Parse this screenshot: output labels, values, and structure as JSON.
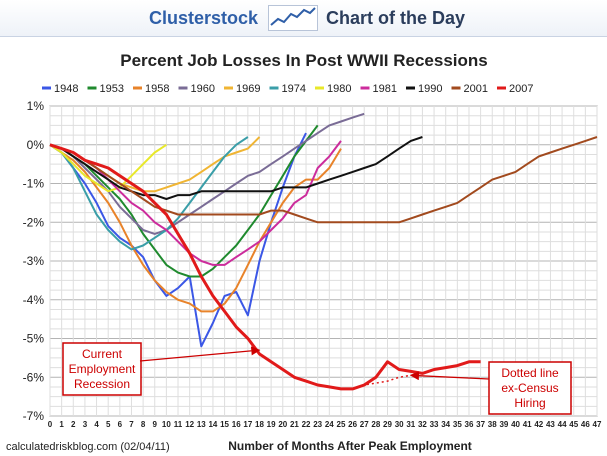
{
  "header": {
    "brand": "Clusterstock",
    "tagline": "Chart of the Day",
    "logo_icon": "rising-chart-icon"
  },
  "chart_data": {
    "type": "line",
    "title": "Percent Job Losses In Post WWII Recessions",
    "xlabel": "Number of Months After Peak Employment",
    "ylabel": "",
    "source": "calculatedriskblog.com (02/04/11)",
    "xlim": [
      0,
      47
    ],
    "ylim": [
      -7,
      1
    ],
    "yticks": [
      1,
      0,
      -1,
      -2,
      -3,
      -4,
      -5,
      -6,
      -7
    ],
    "ytick_labels": [
      "1%",
      "0%",
      "-1%",
      "-2%",
      "-3%",
      "-4%",
      "-5%",
      "-6%",
      "-7%"
    ],
    "xticks": [
      0,
      1,
      2,
      3,
      4,
      5,
      6,
      7,
      8,
      9,
      10,
      11,
      12,
      13,
      14,
      15,
      16,
      17,
      18,
      19,
      20,
      21,
      22,
      23,
      24,
      25,
      26,
      27,
      28,
      29,
      30,
      31,
      32,
      33,
      34,
      35,
      36,
      37,
      38,
      39,
      40,
      41,
      42,
      43,
      44,
      45,
      46,
      47
    ],
    "grid": true,
    "legend_position": "top",
    "series": [
      {
        "name": "1948",
        "color": "#3b57e6",
        "y": [
          0,
          -0.2,
          -0.6,
          -1.0,
          -1.5,
          -2.1,
          -2.4,
          -2.6,
          -2.9,
          -3.5,
          -3.9,
          -3.7,
          -3.4,
          -5.2,
          -4.6,
          -3.9,
          -3.8,
          -4.4,
          -3.0,
          -2.0,
          -1.1,
          -0.3,
          0.3
        ]
      },
      {
        "name": "1953",
        "color": "#1f8a2e",
        "y": [
          0,
          -0.1,
          -0.3,
          -0.5,
          -0.8,
          -1.1,
          -1.4,
          -1.8,
          -2.3,
          -2.7,
          -3.1,
          -3.3,
          -3.4,
          -3.4,
          -3.2,
          -2.9,
          -2.6,
          -2.2,
          -1.8,
          -1.3,
          -0.8,
          -0.3,
          0.1,
          0.5
        ]
      },
      {
        "name": "1958",
        "color": "#e8832a",
        "y": [
          0,
          -0.2,
          -0.4,
          -0.7,
          -1.1,
          -1.5,
          -2.0,
          -2.6,
          -3.1,
          -3.5,
          -3.8,
          -4.0,
          -4.1,
          -4.3,
          -4.3,
          -4.1,
          -3.7,
          -3.1,
          -2.5,
          -2.0,
          -1.5,
          -1.1,
          -0.9,
          -0.9,
          -0.6,
          -0.1
        ]
      },
      {
        "name": "1960",
        "color": "#7a6c96",
        "y": [
          0,
          -0.1,
          -0.3,
          -0.6,
          -0.9,
          -1.2,
          -1.6,
          -1.9,
          -2.2,
          -2.3,
          -2.2,
          -2.0,
          -1.8,
          -1.6,
          -1.4,
          -1.2,
          -1.0,
          -0.8,
          -0.7,
          -0.5,
          -0.3,
          -0.1,
          0.1,
          0.3,
          0.5,
          0.6,
          0.7,
          0.8
        ]
      },
      {
        "name": "1969",
        "color": "#f0b533",
        "y": [
          0,
          -0.1,
          -0.2,
          -0.4,
          -0.6,
          -0.8,
          -1.0,
          -1.1,
          -1.2,
          -1.2,
          -1.1,
          -1.0,
          -0.9,
          -0.7,
          -0.5,
          -0.3,
          -0.2,
          -0.1,
          0.2
        ]
      },
      {
        "name": "1974",
        "color": "#3a9ea8",
        "y": [
          0,
          -0.2,
          -0.6,
          -1.2,
          -1.8,
          -2.2,
          -2.5,
          -2.7,
          -2.6,
          -2.4,
          -2.2,
          -1.9,
          -1.5,
          -1.1,
          -0.7,
          -0.3,
          0.0,
          0.2
        ]
      },
      {
        "name": "1980",
        "color": "#e8e82a",
        "y": [
          0,
          -0.2,
          -0.5,
          -0.8,
          -1.0,
          -1.2,
          -1.1,
          -0.8,
          -0.5,
          -0.2,
          0.0
        ]
      },
      {
        "name": "1981",
        "color": "#cc2c9c",
        "y": [
          0,
          -0.1,
          -0.2,
          -0.4,
          -0.6,
          -0.9,
          -1.2,
          -1.5,
          -1.7,
          -2.0,
          -2.2,
          -2.5,
          -2.8,
          -3.0,
          -3.1,
          -3.1,
          -2.9,
          -2.7,
          -2.5,
          -2.2,
          -1.9,
          -1.5,
          -1.3,
          -0.6,
          -0.3,
          0.1
        ]
      },
      {
        "name": "1990",
        "color": "#111111",
        "y": [
          0,
          -0.1,
          -0.3,
          -0.5,
          -0.7,
          -0.9,
          -1.1,
          -1.2,
          -1.3,
          -1.3,
          -1.4,
          -1.3,
          -1.3,
          -1.2,
          -1.2,
          -1.2,
          -1.2,
          -1.2,
          -1.2,
          -1.2,
          -1.1,
          -1.1,
          -1.1,
          -1.0,
          -0.9,
          -0.8,
          -0.7,
          -0.6,
          -0.5,
          -0.3,
          -0.1,
          0.1,
          0.2
        ]
      },
      {
        "name": "2001",
        "color": "#a24a1e",
        "y": [
          0,
          -0.1,
          -0.2,
          -0.4,
          -0.6,
          -0.8,
          -1.0,
          -1.2,
          -1.4,
          -1.6,
          -1.7,
          -1.8,
          -1.8,
          -1.8,
          -1.8,
          -1.8,
          -1.8,
          -1.8,
          -1.8,
          -1.7,
          -1.7,
          -1.8,
          -1.9,
          -2.0,
          -2.0,
          -2.0,
          -2.0,
          -2.0,
          -2.0,
          -2.0,
          -2.0,
          -1.9,
          -1.8,
          -1.7,
          -1.6,
          -1.5,
          -1.3,
          -1.1,
          -0.9,
          -0.8,
          -0.7,
          -0.5,
          -0.3,
          -0.2,
          -0.1,
          0.0,
          0.1,
          0.2
        ]
      },
      {
        "name": "2007",
        "color": "#e11a1a",
        "y": [
          0,
          -0.1,
          -0.2,
          -0.4,
          -0.5,
          -0.6,
          -0.8,
          -1.0,
          -1.2,
          -1.5,
          -1.8,
          -2.3,
          -2.8,
          -3.4,
          -3.9,
          -4.3,
          -4.7,
          -5.0,
          -5.4,
          -5.6,
          -5.8,
          -6.0,
          -6.1,
          -6.2,
          -6.25,
          -6.3,
          -6.3,
          -6.2,
          -6.0,
          -5.6,
          -5.8,
          -5.85,
          -5.9,
          -5.8,
          -5.75,
          -5.7,
          -5.6,
          -5.6
        ]
      },
      {
        "name": "2007 ex-Census",
        "color": "#e11a1a",
        "dashed": true,
        "x": [
          26,
          27,
          28,
          29,
          30,
          31,
          32
        ],
        "y": [
          -6.3,
          -6.2,
          -6.15,
          -6.1,
          -6.0,
          -5.95,
          -5.9
        ]
      }
    ],
    "annotations": [
      {
        "id": "current",
        "lines": [
          "Current",
          "Employment",
          "Recession"
        ],
        "arrow_to": [
          18,
          -5.3
        ]
      },
      {
        "id": "dotted",
        "lines": [
          "Dotted line",
          "ex-Census",
          "Hiring"
        ],
        "arrow_to": [
          31,
          -5.95
        ]
      }
    ]
  }
}
